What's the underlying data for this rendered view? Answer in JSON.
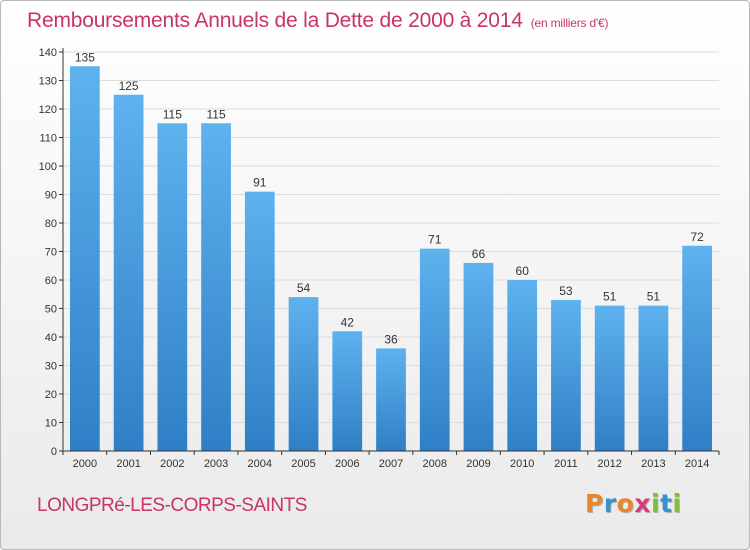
{
  "header": {
    "title": "Remboursements Annuels de la Dette de 2000 à 2014",
    "subtitle": "(en milliers d'€)"
  },
  "footer": {
    "place": "LONGPRé-LES-CORPS-SAINTS",
    "logo": "Proxiti",
    "logo_colors": [
      "#e8862a",
      "#3a8fd0",
      "#e8862a",
      "#d63b7a",
      "#7bbf3a",
      "#3a8fd0",
      "#7bbf3a"
    ]
  },
  "colors": {
    "bar_top": "#5eb2ee",
    "bar_bottom": "#2f7fc6",
    "grid": "#dcdcdc",
    "axis": "#333333",
    "title": "#c8336b"
  },
  "chart_data": {
    "type": "bar",
    "title": "Remboursements Annuels de la Dette de 2000 à 2014",
    "subtitle": "(en milliers d'€)",
    "categories": [
      "2000",
      "2001",
      "2002",
      "2003",
      "2004",
      "2005",
      "2006",
      "2007",
      "2008",
      "2009",
      "2010",
      "2011",
      "2012",
      "2013",
      "2014"
    ],
    "values": [
      135,
      125,
      115,
      115,
      91,
      54,
      42,
      36,
      71,
      66,
      60,
      53,
      51,
      51,
      72
    ],
    "xlabel": "",
    "ylabel": "",
    "ylim": [
      0,
      140
    ],
    "yticks": [
      0,
      10,
      20,
      30,
      40,
      50,
      60,
      70,
      80,
      90,
      100,
      110,
      120,
      130,
      140
    ],
    "grid": true,
    "data_labels": true
  }
}
